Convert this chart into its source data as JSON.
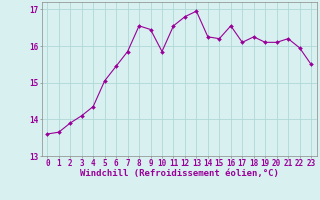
{
  "x": [
    0,
    1,
    2,
    3,
    4,
    5,
    6,
    7,
    8,
    9,
    10,
    11,
    12,
    13,
    14,
    15,
    16,
    17,
    18,
    19,
    20,
    21,
    22,
    23
  ],
  "y": [
    13.6,
    13.65,
    13.9,
    14.1,
    14.35,
    15.05,
    15.45,
    15.85,
    16.55,
    16.45,
    15.85,
    16.55,
    16.8,
    16.95,
    16.25,
    16.2,
    16.55,
    16.1,
    16.25,
    16.1,
    16.1,
    16.2,
    15.95,
    15.5
  ],
  "line_color": "#990099",
  "marker": "D",
  "marker_size": 2.0,
  "bg_color": "#d8f0f0",
  "grid_color": "#b0d8d8",
  "xlabel": "Windchill (Refroidissement éolien,°C)",
  "xlabel_color": "#990099",
  "tick_color": "#990099",
  "ylim": [
    13,
    17.2
  ],
  "xlim": [
    -0.5,
    23.5
  ],
  "yticks": [
    13,
    14,
    15,
    16,
    17
  ],
  "xticks": [
    0,
    1,
    2,
    3,
    4,
    5,
    6,
    7,
    8,
    9,
    10,
    11,
    12,
    13,
    14,
    15,
    16,
    17,
    18,
    19,
    20,
    21,
    22,
    23
  ],
  "xtick_labels": [
    "0",
    "1",
    "2",
    "3",
    "4",
    "5",
    "6",
    "7",
    "8",
    "9",
    "10",
    "11",
    "12",
    "13",
    "14",
    "15",
    "16",
    "17",
    "18",
    "19",
    "20",
    "21",
    "22",
    "23"
  ],
  "spine_color": "#888888",
  "tick_label_fontsize": 5.5,
  "xlabel_fontsize": 6.5,
  "linewidth": 0.8
}
